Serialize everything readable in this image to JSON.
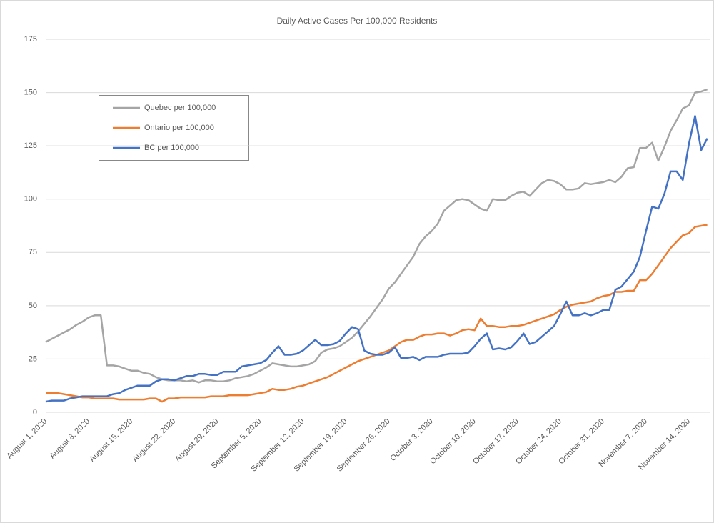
{
  "chart_data": {
    "type": "line",
    "title": "Daily Active Cases Per 100,000 Residents",
    "categories": [
      "August 1, 2020",
      null,
      null,
      null,
      null,
      null,
      null,
      "August 8, 2020",
      null,
      null,
      null,
      null,
      null,
      null,
      "August 15, 2020",
      null,
      null,
      null,
      null,
      null,
      null,
      "August 22, 2020",
      null,
      null,
      null,
      null,
      null,
      null,
      "August 29, 2020",
      null,
      null,
      null,
      null,
      null,
      null,
      "September 5, 2020",
      null,
      null,
      null,
      null,
      null,
      null,
      "September 12, 2020",
      null,
      null,
      null,
      null,
      null,
      null,
      "September 19, 2020",
      null,
      null,
      null,
      null,
      null,
      null,
      "September 26, 2020",
      null,
      null,
      null,
      null,
      null,
      null,
      "October 3, 2020",
      null,
      null,
      null,
      null,
      null,
      null,
      "October 10, 2020",
      null,
      null,
      null,
      null,
      null,
      null,
      "October 17, 2020",
      null,
      null,
      null,
      null,
      null,
      null,
      "October 24, 2020",
      null,
      null,
      null,
      null,
      null,
      null,
      "October 31, 2020",
      null,
      null,
      null,
      null,
      null,
      null,
      "November 7, 2020",
      null,
      null,
      null,
      null,
      null,
      null,
      "November 14, 2020",
      null,
      null,
      null
    ],
    "series": [
      {
        "name": "Quebec per 100,000",
        "color": "#a5a5a5",
        "values": [
          33,
          34.5,
          36,
          37.5,
          39,
          41,
          42.5,
          44.5,
          45.5,
          45.5,
          22,
          22,
          21.5,
          20.5,
          19.5,
          19.5,
          18.5,
          18,
          16.5,
          15.5,
          15,
          15,
          15,
          14.5,
          15,
          14,
          15,
          15,
          14.5,
          14.5,
          15,
          16,
          16.5,
          17,
          18,
          19.5,
          21,
          23,
          22.5,
          22,
          21.5,
          21.5,
          22,
          22.5,
          24,
          28,
          29.5,
          30,
          31,
          33,
          35,
          38,
          41.5,
          45,
          49,
          53,
          58,
          61,
          65,
          69,
          73,
          79,
          82.5,
          85,
          88.5,
          94.5,
          97,
          99.5,
          100,
          99.5,
          97.5,
          95.5,
          94.5,
          100,
          99.5,
          99.5,
          101.5,
          103,
          103.5,
          101.5,
          104.5,
          107.5,
          109,
          108.5,
          107,
          104.5,
          104.5,
          105,
          107.5,
          107,
          107.5,
          108,
          109,
          108,
          110.5,
          114.5,
          115,
          124,
          124,
          126.5,
          118,
          124.5,
          132,
          137,
          142.5,
          144,
          150,
          150.5,
          151.5
        ]
      },
      {
        "name": "Ontario per 100,000",
        "color": "#ed7d31",
        "values": [
          9,
          9,
          9,
          8.5,
          8,
          7.5,
          7,
          7,
          6.5,
          6.5,
          6.5,
          6.5,
          6,
          6,
          6,
          6,
          6,
          6.5,
          6.5,
          5,
          6.5,
          6.5,
          7,
          7,
          7,
          7,
          7,
          7.5,
          7.5,
          7.5,
          8,
          8,
          8,
          8,
          8.5,
          9,
          9.5,
          11,
          10.5,
          10.5,
          11,
          12,
          12.5,
          13.5,
          14.5,
          15.5,
          16.5,
          18,
          19.5,
          21,
          22.5,
          24,
          25,
          26,
          27,
          28,
          29,
          31,
          33,
          34,
          34,
          35.5,
          36.5,
          36.5,
          37,
          37,
          36,
          37,
          38.5,
          39,
          38.5,
          44,
          40.5,
          40.5,
          40,
          40,
          40.5,
          40.5,
          41,
          42,
          43,
          44,
          45,
          46,
          48,
          49.5,
          50.5,
          51,
          51.5,
          52,
          53.5,
          54.5,
          55,
          56.5,
          56.5,
          57,
          57,
          62,
          62,
          65,
          69,
          73,
          77,
          80,
          83,
          84,
          87,
          87.5,
          88
        ]
      },
      {
        "name": "BC per 100,000",
        "color": "#4472c4",
        "values": [
          5,
          5.5,
          5.5,
          5.5,
          6.5,
          7,
          7.5,
          7.5,
          7.5,
          7.5,
          7.5,
          8.5,
          9,
          10.5,
          11.5,
          12.5,
          12.5,
          12.5,
          14.5,
          15.5,
          15.5,
          15,
          16,
          17,
          17,
          18,
          18,
          17.5,
          17.5,
          19,
          19,
          19,
          21.5,
          22,
          22.5,
          23,
          24.5,
          28,
          31,
          27,
          27,
          27.5,
          29,
          31.5,
          34,
          31.5,
          31.5,
          32,
          33.5,
          37,
          40,
          39,
          29,
          27.5,
          27,
          27,
          28,
          30.5,
          25.5,
          25.5,
          26,
          24.5,
          26,
          26,
          26,
          27,
          27.5,
          27.5,
          27.5,
          28,
          31,
          34.5,
          37,
          29.5,
          30,
          29.5,
          30.5,
          33.5,
          37,
          32,
          33,
          35.5,
          38,
          40.5,
          46,
          52,
          45.5,
          45.5,
          46.5,
          45.5,
          46.5,
          48,
          48,
          57.5,
          59,
          62.5,
          66,
          73,
          85,
          96.5,
          95.5,
          102.5,
          113,
          113,
          109,
          126,
          139,
          123,
          128.5
        ]
      }
    ],
    "ylim": [
      0,
      175
    ],
    "yticks": [
      0,
      25,
      50,
      75,
      100,
      125,
      150,
      175
    ],
    "grid": true
  }
}
